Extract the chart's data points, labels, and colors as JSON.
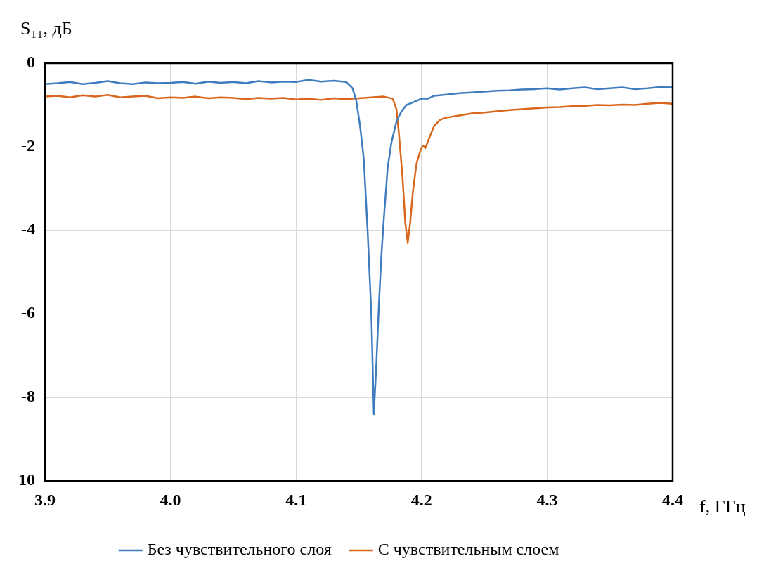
{
  "chart_data": {
    "type": "line",
    "xlabel": "f, ГГц",
    "ylabel": "S₁₁, дБ",
    "xlim": [
      3.9,
      4.4
    ],
    "xticks": [
      3.9,
      {
        "value": 4,
        "label": "4.0"
      },
      4.1,
      4.2,
      4.3,
      4.4
    ],
    "ylim": [
      -10,
      0
    ],
    "yticks": [
      0,
      -2,
      -4,
      -6,
      -8,
      {
        "value": -10,
        "label": "10"
      }
    ],
    "grid": true,
    "legend": "bottom",
    "marker": "none",
    "line_style": "solid",
    "series": [
      {
        "name": "Без чувствительного слоя",
        "color": "#3f7cbf",
        "x": [
          3.9,
          3.91,
          3.92,
          3.93,
          3.94,
          3.95,
          3.96,
          3.97,
          3.98,
          3.99,
          4.0,
          4.01,
          4.02,
          4.03,
          4.04,
          4.05,
          4.06,
          4.07,
          4.08,
          4.09,
          4.1,
          4.11,
          4.12,
          4.13,
          4.14,
          4.145,
          4.148,
          4.151,
          4.154,
          4.157,
          4.16,
          4.162,
          4.164,
          4.166,
          4.168,
          4.17,
          4.173,
          4.176,
          4.18,
          4.184,
          4.188,
          4.192,
          4.196,
          4.2,
          4.205,
          4.21,
          4.22,
          4.23,
          4.24,
          4.25,
          4.26,
          4.27,
          4.28,
          4.29,
          4.3,
          4.31,
          4.32,
          4.33,
          4.34,
          4.35,
          4.36,
          4.37,
          4.38,
          4.39,
          4.4
        ],
        "values": [
          -0.5,
          -0.48,
          -0.45,
          -0.5,
          -0.47,
          -0.43,
          -0.48,
          -0.5,
          -0.46,
          -0.48,
          -0.47,
          -0.45,
          -0.49,
          -0.44,
          -0.47,
          -0.45,
          -0.48,
          -0.43,
          -0.46,
          -0.44,
          -0.45,
          -0.4,
          -0.44,
          -0.42,
          -0.45,
          -0.6,
          -0.9,
          -1.5,
          -2.3,
          -4.0,
          -6.0,
          -8.4,
          -7.2,
          -5.8,
          -4.6,
          -3.7,
          -2.5,
          -1.9,
          -1.4,
          -1.15,
          -1.0,
          -0.95,
          -0.9,
          -0.85,
          -0.85,
          -0.78,
          -0.75,
          -0.72,
          -0.7,
          -0.68,
          -0.66,
          -0.65,
          -0.63,
          -0.62,
          -0.6,
          -0.63,
          -0.6,
          -0.58,
          -0.62,
          -0.6,
          -0.58,
          -0.62,
          -0.6,
          -0.57,
          -0.58
        ]
      },
      {
        "name": "С чувствительным слоем",
        "color": "#d9661b",
        "x": [
          3.9,
          3.91,
          3.92,
          3.93,
          3.94,
          3.95,
          3.96,
          3.97,
          3.98,
          3.99,
          4.0,
          4.01,
          4.02,
          4.03,
          4.04,
          4.05,
          4.06,
          4.07,
          4.08,
          4.09,
          4.1,
          4.11,
          4.12,
          4.13,
          4.14,
          4.15,
          4.16,
          4.17,
          4.177,
          4.18,
          4.182,
          4.185,
          4.187,
          4.189,
          4.191,
          4.193,
          4.196,
          4.199,
          4.201,
          4.203,
          4.206,
          4.21,
          4.215,
          4.22,
          4.23,
          4.24,
          4.25,
          4.26,
          4.27,
          4.28,
          4.29,
          4.3,
          4.31,
          4.32,
          4.33,
          4.34,
          4.35,
          4.36,
          4.37,
          4.38,
          4.39,
          4.4
        ],
        "values": [
          -0.8,
          -0.78,
          -0.82,
          -0.77,
          -0.8,
          -0.76,
          -0.82,
          -0.8,
          -0.78,
          -0.84,
          -0.82,
          -0.83,
          -0.8,
          -0.84,
          -0.82,
          -0.83,
          -0.86,
          -0.83,
          -0.85,
          -0.83,
          -0.87,
          -0.85,
          -0.88,
          -0.84,
          -0.86,
          -0.84,
          -0.82,
          -0.8,
          -0.85,
          -1.1,
          -1.7,
          -2.8,
          -3.8,
          -4.3,
          -3.8,
          -3.1,
          -2.4,
          -2.1,
          -1.97,
          -2.03,
          -1.8,
          -1.5,
          -1.35,
          -1.3,
          -1.25,
          -1.2,
          -1.18,
          -1.15,
          -1.12,
          -1.1,
          -1.08,
          -1.06,
          -1.05,
          -1.03,
          -1.02,
          -1.0,
          -1.01,
          -0.99,
          -1.0,
          -0.97,
          -0.95,
          -0.97
        ]
      }
    ]
  }
}
